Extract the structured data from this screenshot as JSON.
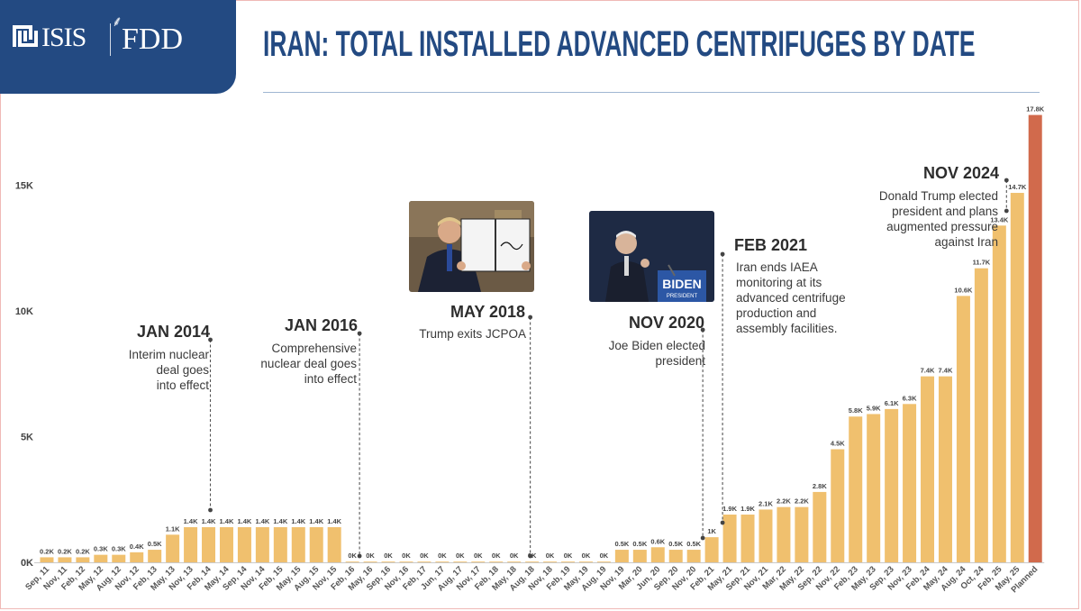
{
  "logo": {
    "left_text": "ISIS",
    "right_text": "FDD"
  },
  "header": {
    "title": "IRAN: TOTAL INSTALLED ADVANCED CENTRIFUGES BY DATE"
  },
  "colors": {
    "bar": "#f0c06e",
    "bar_planned": "#d16a4c",
    "brand_navy": "#234a82",
    "rule": "#9fb6d2"
  },
  "chart_data": {
    "type": "bar",
    "title": "IRAN: TOTAL INSTALLED ADVANCED CENTRIFUGES BY DATE",
    "ylim": [
      0,
      18000
    ],
    "y_ticks": [
      0,
      5000,
      10000,
      15000
    ],
    "y_tick_labels": [
      "0K",
      "5K",
      "10K",
      "15K"
    ],
    "categories": [
      "Sep, 11",
      "Nov, 11",
      "Feb, 12",
      "May, 12",
      "Aug, 12",
      "Nov, 12",
      "Feb, 13",
      "May, 13",
      "Nov, 13",
      "Feb, 14",
      "May, 14",
      "Sep, 14",
      "Nov, 14",
      "Feb, 15",
      "May, 15",
      "Aug, 15",
      "Nov, 15",
      "Feb, 16",
      "May, 16",
      "Sep, 16",
      "Nov, 16",
      "Feb, 17",
      "Jun, 17",
      "Aug, 17",
      "Nov, 17",
      "Feb, 18",
      "May, 18",
      "Aug, 18",
      "Nov, 18",
      "Feb, 19",
      "May, 19",
      "Aug, 19",
      "Nov, 19",
      "Mar, 20",
      "Jun, 20",
      "Sep, 20",
      "Nov, 20",
      "Feb, 21",
      "May, 21",
      "Sep, 21",
      "Nov, 21",
      "Mar, 22",
      "May, 22",
      "Sep, 22",
      "Nov, 22",
      "Feb, 23",
      "May, 23",
      "Sep, 23",
      "Nov, 23",
      "Feb, 24",
      "May, 24",
      "Aug, 24",
      "Oct, 24",
      "Feb, 25",
      "May, 25",
      "Planned"
    ],
    "values": [
      200,
      200,
      200,
      300,
      300,
      400,
      500,
      1100,
      1400,
      1400,
      1400,
      1400,
      1400,
      1400,
      1400,
      1400,
      1400,
      0,
      0,
      0,
      0,
      0,
      0,
      0,
      0,
      0,
      0,
      0,
      0,
      0,
      0,
      0,
      500,
      500,
      600,
      500,
      500,
      1000,
      1900,
      1900,
      2100,
      2200,
      2200,
      2800,
      4500,
      5800,
      5900,
      6100,
      6300,
      7400,
      7400,
      10600,
      11700,
      13400,
      14700,
      17800
    ],
    "value_labels": [
      "0.2K",
      "0.2K",
      "0.2K",
      "0.3K",
      "0.3K",
      "0.4K",
      "0.5K",
      "1.1K",
      "1.4K",
      "1.4K",
      "1.4K",
      "1.4K",
      "1.4K",
      "1.4K",
      "1.4K",
      "1.4K",
      "1.4K",
      "0K",
      "0K",
      "0K",
      "0K",
      "0K",
      "0K",
      "0K",
      "0K",
      "0K",
      "0K",
      "0K",
      "0K",
      "0K",
      "0K",
      "0K",
      "0.5K",
      "0.5K",
      "0.6K",
      "0.5K",
      "0.5K",
      "1K",
      "1.9K",
      "1.9K",
      "2.1K",
      "2.2K",
      "2.2K",
      "2.8K",
      "4.5K",
      "5.8K",
      "5.9K",
      "6.1K",
      "6.3K",
      "7.4K",
      "7.4K",
      "10.6K",
      "11.7K",
      "13.4K",
      "14.7K",
      "17.8K"
    ],
    "planned_index": 55,
    "grid": false,
    "legend": "none"
  },
  "annotations": [
    {
      "title": "JAN 2014",
      "body": [
        "Interim nuclear",
        "deal goes",
        "into effect"
      ]
    },
    {
      "title": "JAN 2016",
      "body": [
        "Comprehensive",
        "nuclear deal goes",
        "into effect"
      ]
    },
    {
      "title": "MAY 2018",
      "body": [
        "Trump exits JCPOA"
      ]
    },
    {
      "title": "NOV 2020",
      "body": [
        "Joe Biden elected",
        "president"
      ]
    },
    {
      "title": "FEB 2021",
      "body": [
        "Iran ends IAEA",
        "monitoring at its",
        "advanced centrifuge",
        "production and",
        "assembly facilities."
      ]
    },
    {
      "title": "NOV 2024",
      "body": [
        "Donald Trump elected",
        "president and plans",
        "augmented pressure",
        "against Iran"
      ]
    }
  ],
  "photos": {
    "trump_sign": "BIDEN",
    "trump_sign_sub": "PRESIDENT"
  }
}
